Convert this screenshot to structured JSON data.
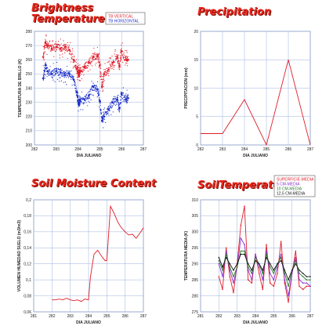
{
  "titles": {
    "brightness": "Brightness Temperature",
    "brightness_l1": "Brightness",
    "brightness_l2": "Temperature",
    "precipitation": "Precipitation",
    "soil_moisture": "Soil Moisture Content",
    "soil_temperature": "SoilTemperature"
  },
  "colors": {
    "red": "#e01d2a",
    "blue": "#1d2fc9",
    "green": "#2c7a2c",
    "black": "#111111",
    "purple": "#8b2fd0",
    "grid": "#9db0dc",
    "heading": "#e8261b"
  },
  "chart_data": [
    {
      "id": "brightness",
      "type": "scatter",
      "title": "Brightness Temperature",
      "xlabel": "DIA JULIANO",
      "ylabel": "TEMPERATURA DE BRILLO (K)",
      "xlim": [
        282,
        287
      ],
      "ylim": [
        200,
        280
      ],
      "xticks": [
        282,
        283,
        284,
        285,
        286,
        287
      ],
      "yticks": [
        200,
        210,
        220,
        230,
        240,
        250,
        260,
        270,
        280
      ],
      "grid": true,
      "legend": "top-right",
      "series": [
        {
          "name": "TB VERTICAL",
          "color": "#e01d2a",
          "x": [
            282.4,
            282.5,
            282.6,
            282.8,
            283.0,
            283.2,
            283.4,
            283.6,
            283.8,
            283.95,
            284.0,
            284.05,
            284.1,
            284.3,
            284.5,
            284.7,
            284.9,
            285.0,
            285.1,
            285.2,
            285.4,
            285.6,
            285.8,
            285.9,
            286.0,
            286.2,
            286.3
          ],
          "y": [
            262,
            272,
            270,
            268,
            269,
            268,
            269,
            267,
            260,
            254,
            251,
            250,
            252,
            255,
            258,
            262,
            263,
            256,
            241,
            250,
            253,
            258,
            262,
            255,
            266,
            260,
            260
          ]
        },
        {
          "name": "TB HORIZONTAL",
          "color": "#1d2fc9",
          "x": [
            282.4,
            282.5,
            282.6,
            282.8,
            283.0,
            283.2,
            283.4,
            283.6,
            283.8,
            283.95,
            284.0,
            284.05,
            284.1,
            284.3,
            284.5,
            284.7,
            284.9,
            285.0,
            285.1,
            285.2,
            285.4,
            285.6,
            285.8,
            285.9,
            286.0,
            286.2,
            286.3
          ],
          "y": [
            247,
            256,
            252,
            250,
            252,
            251,
            249,
            250,
            246,
            237,
            231,
            229,
            231,
            232,
            235,
            241,
            239,
            231,
            217,
            220,
            225,
            230,
            232,
            226,
            236,
            232,
            233
          ]
        }
      ]
    },
    {
      "id": "precipitation",
      "type": "line",
      "title": "Precipitation",
      "xlabel": "DIA JULIANO",
      "ylabel": "PRECIPITACION (mm)",
      "xlim": [
        282,
        287
      ],
      "ylim": [
        0,
        20
      ],
      "xticks": [
        282,
        283,
        284,
        285,
        286,
        287
      ],
      "yticks": [
        0,
        5,
        10,
        15,
        20
      ],
      "grid": true,
      "series": [
        {
          "color": "#e01d2a",
          "x": [
            282,
            283,
            284,
            285,
            286,
            287
          ],
          "y": [
            2,
            2,
            8,
            0,
            15,
            0
          ]
        }
      ]
    },
    {
      "id": "soil_moisture",
      "type": "line",
      "title": "Soil Moisture Content",
      "xlabel": "DIA JULIANO",
      "ylabel": "VOLUMEN HUMEDAD SUELO (m3/m3)",
      "xlim": [
        281,
        287
      ],
      "ylim": [
        0.06,
        0.2
      ],
      "xticks": [
        281,
        282,
        283,
        284,
        285,
        286,
        287
      ],
      "yticks": [
        0.06,
        0.08,
        0.1,
        0.12,
        0.14,
        0.16,
        0.18,
        0.2
      ],
      "yticklabels": [
        "0,06",
        "0,08",
        "0,1",
        "0,12",
        "0,14",
        "0,16",
        "0,18",
        "0,2"
      ],
      "grid": true,
      "series": [
        {
          "color": "#e01d2a",
          "x": [
            282.0,
            282.2,
            282.4,
            282.6,
            282.8,
            283.0,
            283.2,
            283.4,
            283.6,
            283.8,
            284.0,
            284.1,
            284.3,
            284.5,
            284.7,
            284.8,
            284.9,
            285.0,
            285.2,
            285.4,
            285.6,
            285.8,
            286.0,
            286.2,
            286.4,
            286.6,
            286.8,
            287.0
          ],
          "y": [
            0.075,
            0.075,
            0.076,
            0.075,
            0.077,
            0.075,
            0.074,
            0.075,
            0.073,
            0.076,
            0.075,
            0.103,
            0.132,
            0.137,
            0.13,
            0.127,
            0.124,
            0.124,
            0.192,
            0.183,
            0.172,
            0.165,
            0.16,
            0.156,
            0.157,
            0.152,
            0.158,
            0.165
          ]
        }
      ]
    },
    {
      "id": "soil_temperature",
      "type": "line",
      "title": "SoilTemperature",
      "xlabel": "DIA JULIANO",
      "ylabel": "TEMPERATURA MEDIA (K)",
      "xlim": [
        281,
        287
      ],
      "ylim": [
        275,
        310
      ],
      "xticks": [
        281,
        282,
        283,
        284,
        285,
        286,
        287
      ],
      "yticks": [
        275,
        280,
        285,
        290,
        295,
        300,
        305,
        310
      ],
      "grid": true,
      "legend": "top-right",
      "series": [
        {
          "name": "SUPERFICIE-MEDIA",
          "color": "#e01d2a",
          "x": [
            282.0,
            282.2,
            282.4,
            282.6,
            282.8,
            283.0,
            283.2,
            283.4,
            283.6,
            283.8,
            284.0,
            284.2,
            284.4,
            284.6,
            284.8,
            285.0,
            285.2,
            285.4,
            285.6,
            285.8,
            286.0,
            286.2,
            286.4,
            286.6,
            286.8,
            287.0
          ],
          "y": [
            286,
            282,
            295,
            286,
            281,
            290,
            302,
            308,
            285,
            284,
            293,
            287,
            282,
            296,
            284,
            283,
            287,
            297,
            284,
            278,
            287,
            294,
            283,
            282,
            283,
            283
          ]
        },
        {
          "name": "5 CM-MEDIA",
          "color": "#8b2fd0",
          "x": [
            282.0,
            282.2,
            282.4,
            282.6,
            282.8,
            283.0,
            283.2,
            283.4,
            283.6,
            283.8,
            284.0,
            284.2,
            284.4,
            284.6,
            284.8,
            285.0,
            285.2,
            285.4,
            285.6,
            285.8,
            286.0,
            286.2,
            286.4,
            286.6,
            286.8,
            287.0
          ],
          "y": [
            290,
            286,
            294,
            288,
            284,
            289,
            298,
            296,
            288,
            285,
            293,
            289,
            285,
            294,
            287,
            285,
            289,
            293,
            285,
            280,
            287,
            292,
            285,
            284,
            284,
            283
          ]
        },
        {
          "name": "10 CM-MEDIA",
          "color": "#2c7a2c",
          "x": [
            282.0,
            282.2,
            282.4,
            282.6,
            282.8,
            283.0,
            283.2,
            283.4,
            283.6,
            283.8,
            284.0,
            284.2,
            284.4,
            284.6,
            284.8,
            285.0,
            285.2,
            285.4,
            285.6,
            285.8,
            286.0,
            286.2,
            286.4,
            286.6,
            286.8,
            287.0
          ],
          "y": [
            291,
            288,
            293,
            289,
            286,
            289,
            294,
            294,
            289,
            287,
            292,
            290,
            287,
            293,
            289,
            287,
            290,
            292,
            287,
            283,
            288,
            291,
            287,
            286,
            285,
            285
          ]
        },
        {
          "name": "12,5 CM-MEDIA",
          "color": "#111111",
          "x": [
            282.0,
            282.2,
            282.4,
            282.6,
            282.8,
            283.0,
            283.2,
            283.4,
            283.6,
            283.8,
            284.0,
            284.2,
            284.4,
            284.6,
            284.8,
            285.0,
            285.2,
            285.4,
            285.6,
            285.8,
            286.0,
            286.2,
            286.4,
            286.6,
            286.8,
            287.0
          ],
          "y": [
            292,
            289,
            292,
            290,
            288,
            290,
            293,
            293,
            290,
            288,
            291,
            290,
            288,
            292,
            290,
            288,
            290,
            291,
            288,
            285,
            288,
            290,
            288,
            287,
            286,
            286
          ]
        }
      ]
    }
  ]
}
